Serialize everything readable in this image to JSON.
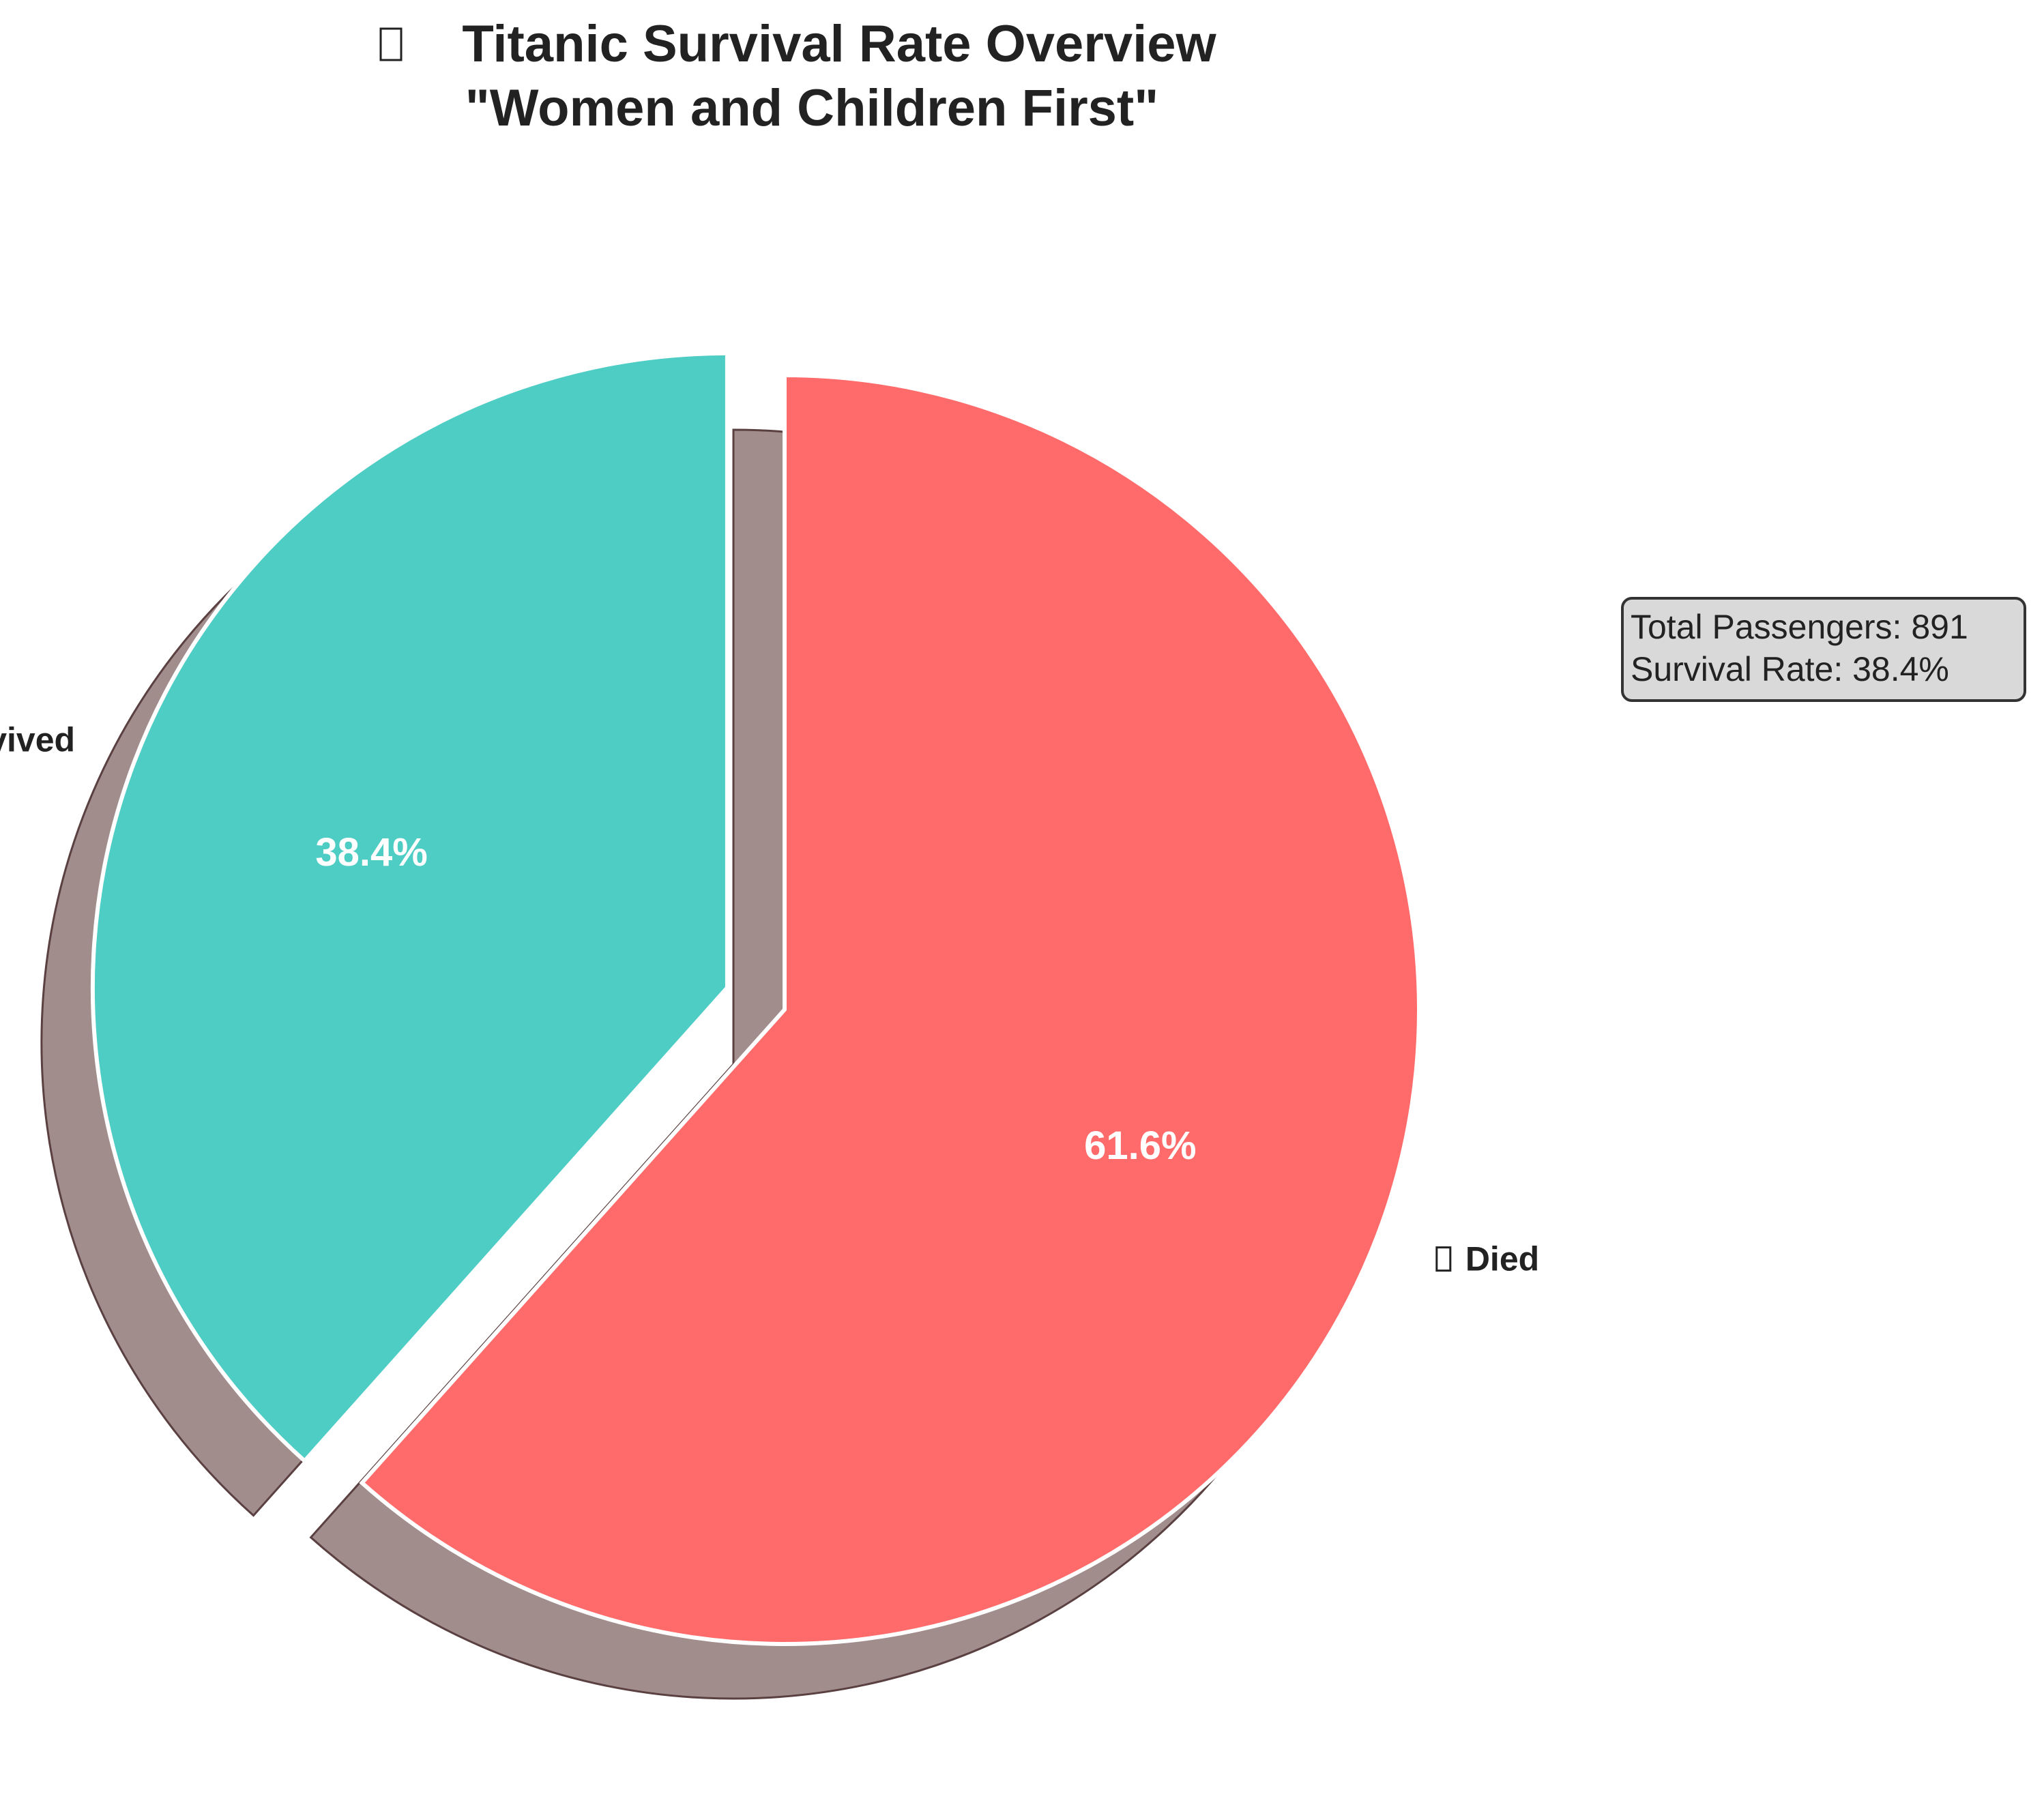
{
  "chart_data": {
    "type": "pie",
    "title_icon": "ship-icon",
    "title_line1": "Titanic Survival Rate Overview",
    "title_line2": "\"Women and Children First\"",
    "slices": [
      {
        "label": "Died",
        "icon": "skull-icon",
        "value": 61.6,
        "percent_label": "61.6%",
        "color": "#FF6B6B",
        "exploded": false
      },
      {
        "label": "Survived",
        "icon": "lifebuoy-icon",
        "value": 38.4,
        "percent_label": "38.4%",
        "color": "#4ECDC4",
        "exploded": true
      }
    ],
    "start_angle_deg": 90,
    "direction": "clockwise",
    "shadow": true,
    "shadow_color": "#7A5C5C",
    "info_box": {
      "line1": "Total Passengers: 891",
      "line2": "Survival Rate: 38.4%",
      "background": "#D9D9D9",
      "border": "#333333"
    }
  }
}
